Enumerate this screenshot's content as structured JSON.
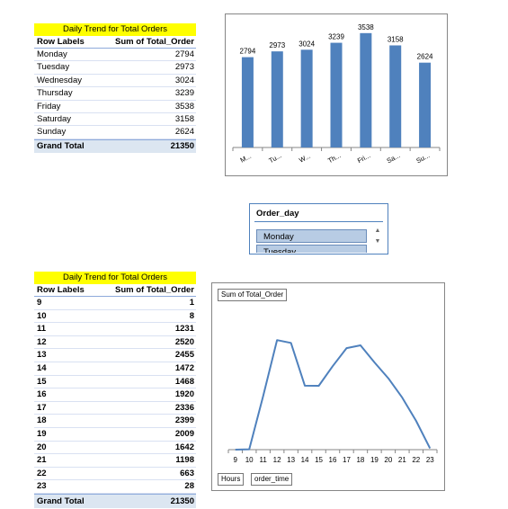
{
  "pivot_day": {
    "title": "Daily Trend for Total Orders",
    "col_label": "Row Labels",
    "col_value": "Sum of Total_Order",
    "rows": [
      {
        "label": "Monday",
        "value": "2794"
      },
      {
        "label": "Tuesday",
        "value": "2973"
      },
      {
        "label": "Wednesday",
        "value": "3024"
      },
      {
        "label": "Thursday",
        "value": "3239"
      },
      {
        "label": "Friday",
        "value": "3538"
      },
      {
        "label": "Saturday",
        "value": "3158"
      },
      {
        "label": "Sunday",
        "value": "2624"
      }
    ],
    "total_label": "Grand Total",
    "total_value": "21350"
  },
  "pivot_hour": {
    "title": "Daily Trend for Total Orders",
    "col_label": "Row Labels",
    "col_value": "Sum of Total_Order",
    "rows": [
      {
        "label": "9",
        "value": "1"
      },
      {
        "label": "10",
        "value": "8"
      },
      {
        "label": "11",
        "value": "1231"
      },
      {
        "label": "12",
        "value": "2520"
      },
      {
        "label": "13",
        "value": "2455"
      },
      {
        "label": "14",
        "value": "1472"
      },
      {
        "label": "15",
        "value": "1468"
      },
      {
        "label": "16",
        "value": "1920"
      },
      {
        "label": "17",
        "value": "2336"
      },
      {
        "label": "18",
        "value": "2399"
      },
      {
        "label": "19",
        "value": "2009"
      },
      {
        "label": "20",
        "value": "1642"
      },
      {
        "label": "21",
        "value": "1198"
      },
      {
        "label": "22",
        "value": "663"
      },
      {
        "label": "23",
        "value": "28"
      }
    ],
    "total_label": "Grand Total",
    "total_value": "21350"
  },
  "slicer": {
    "title": "Order_day",
    "items": [
      "Monday",
      "Tuesday"
    ]
  },
  "chart2_buttons": {
    "value_field": "Sum of Total_Order",
    "axis_field": "Hours",
    "axis_field2": "order_time"
  },
  "chart_data": [
    {
      "type": "bar",
      "categories": [
        "M...",
        "Tu...",
        "W...",
        "Th...",
        "Fri...",
        "Sa...",
        "Su..."
      ],
      "values": [
        2794,
        2973,
        3024,
        3239,
        3538,
        3158,
        2624
      ],
      "title": "",
      "xlabel": "",
      "ylabel": "",
      "ylim": [
        0,
        3700
      ],
      "color": "#4f81bd",
      "data_labels": true,
      "grid": false
    },
    {
      "type": "line",
      "x": [
        "9",
        "10",
        "11",
        "12",
        "13",
        "14",
        "15",
        "16",
        "17",
        "18",
        "19",
        "20",
        "21",
        "22",
        "23"
      ],
      "values": [
        1,
        8,
        1231,
        2520,
        2455,
        1472,
        1468,
        1920,
        2336,
        2399,
        2009,
        1642,
        1198,
        663,
        28
      ],
      "title": "",
      "xlabel": "",
      "ylabel": "",
      "ylim": [
        0,
        3000
      ],
      "color": "#4f81bd",
      "grid": false
    }
  ]
}
